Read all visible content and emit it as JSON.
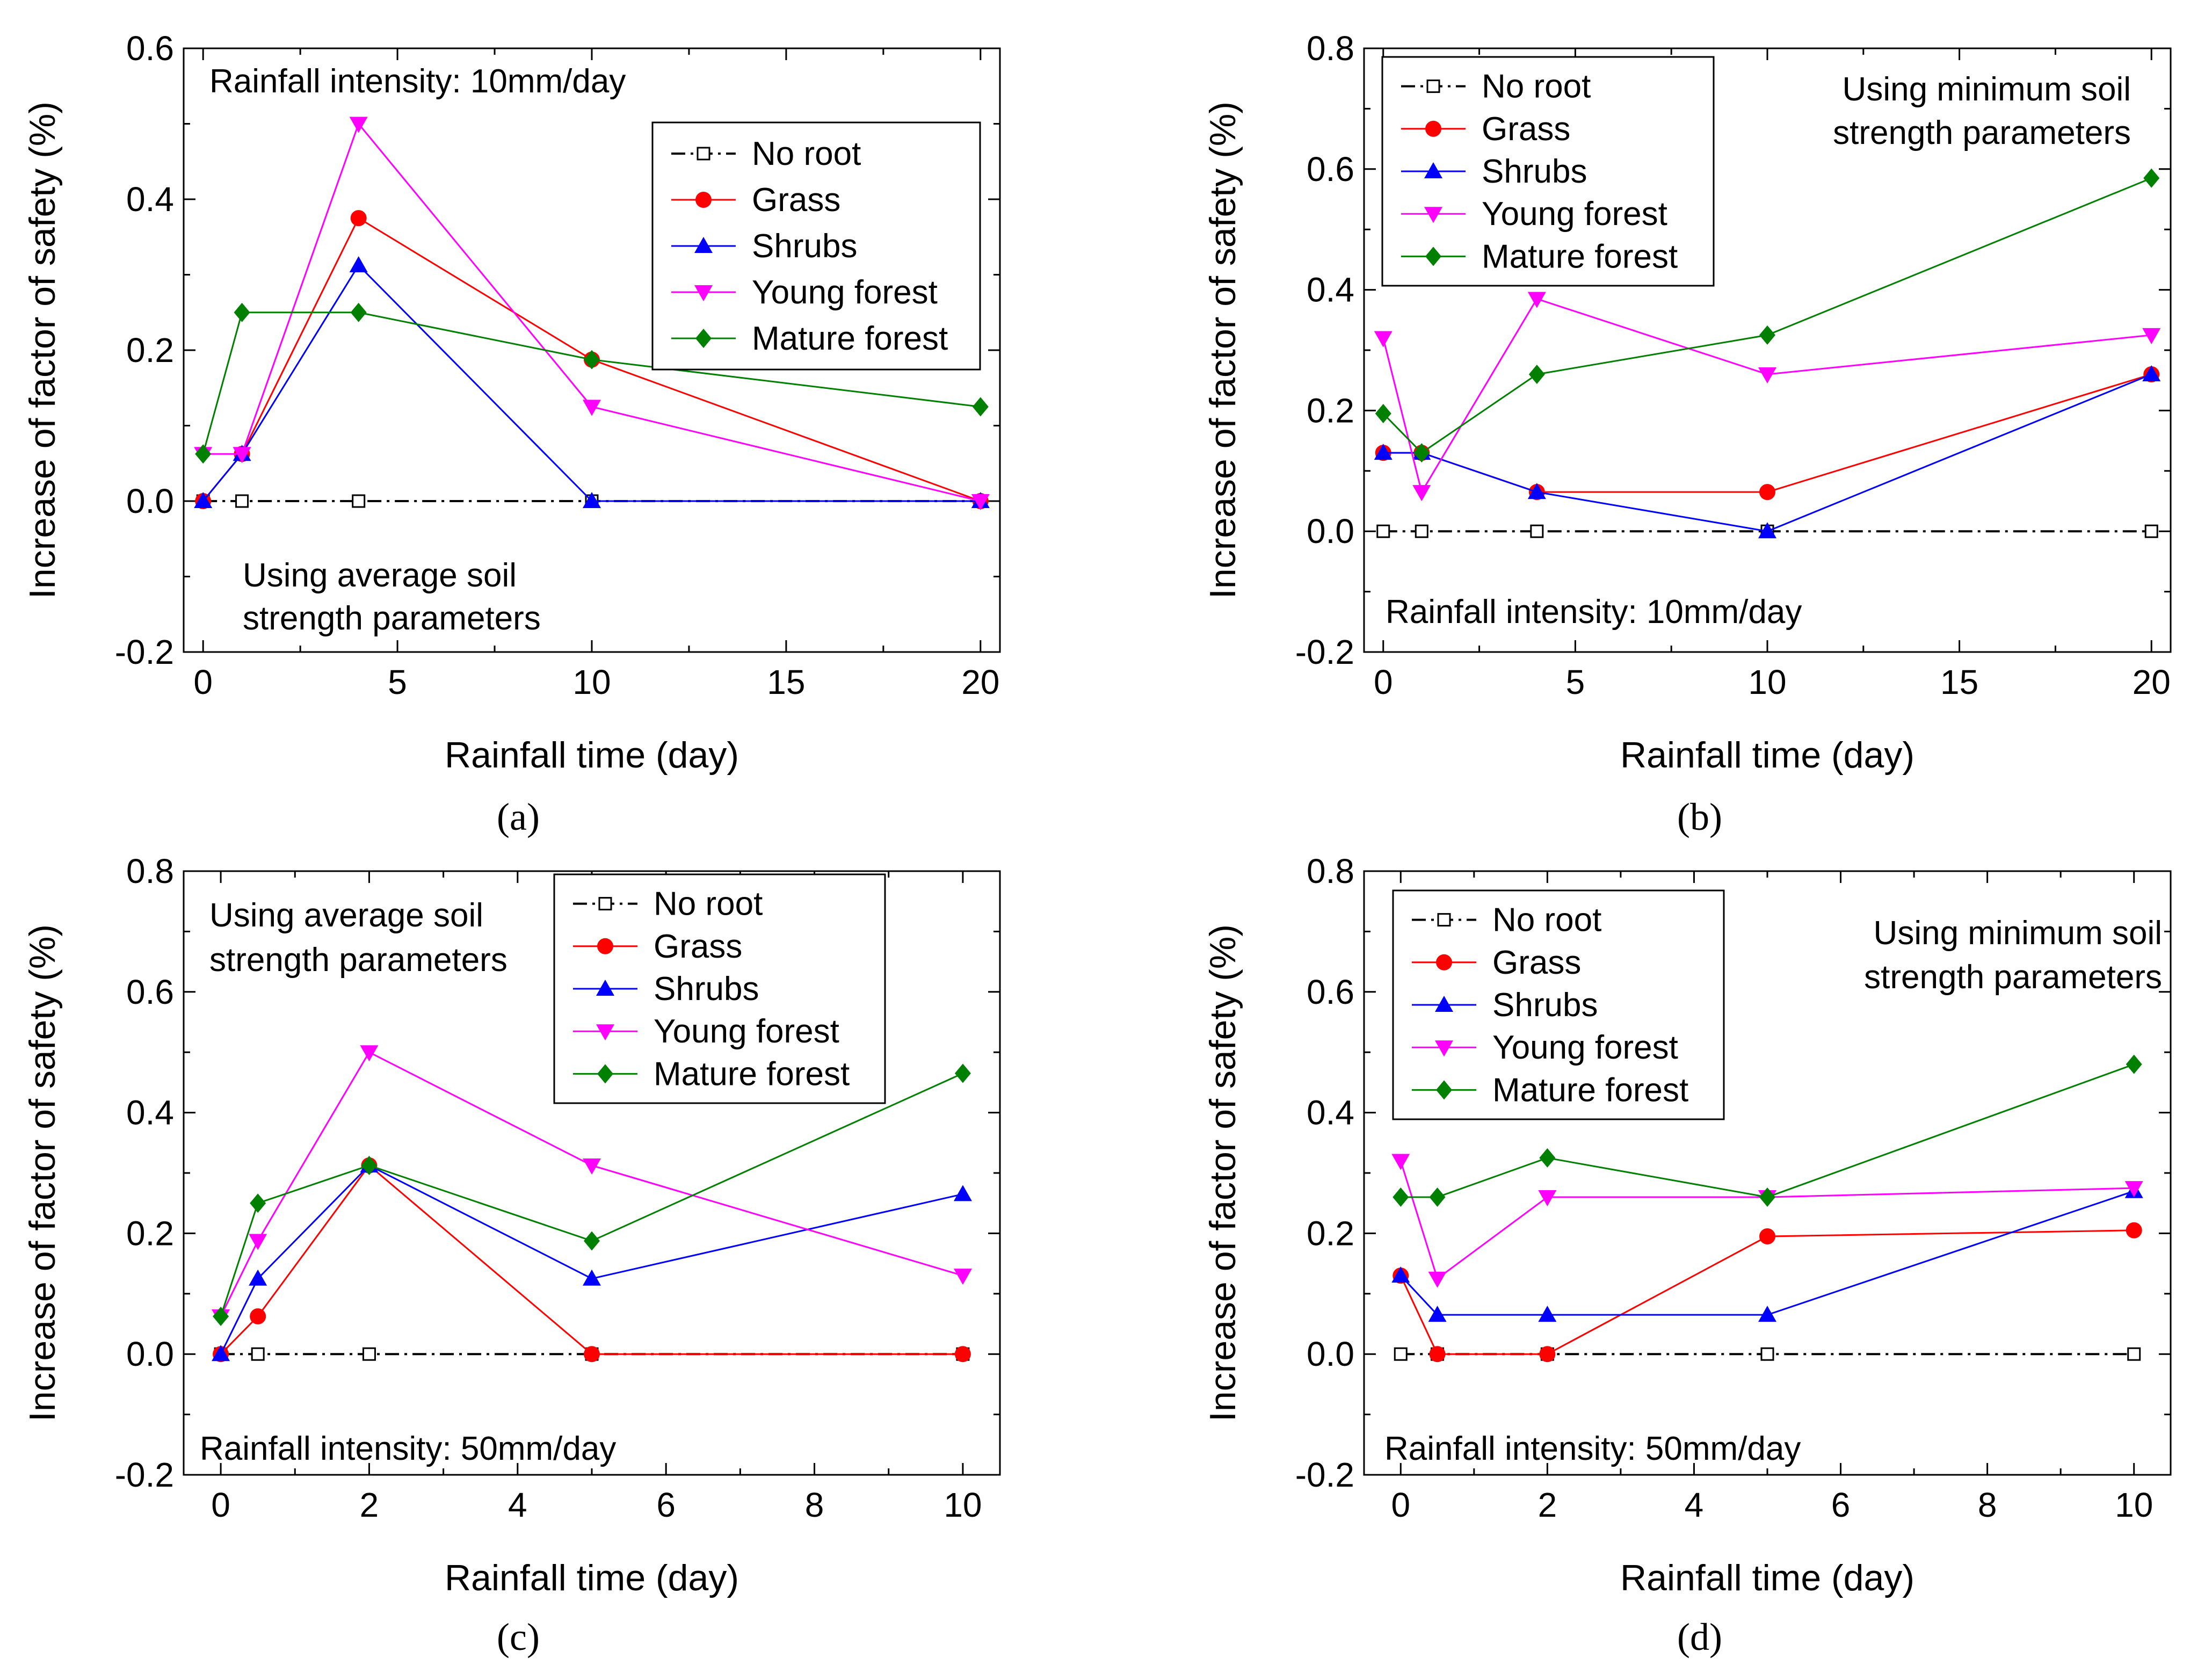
{
  "figure": {
    "colors": {
      "no_root": "#000000",
      "grass": "#ff0000",
      "shrubs": "#0000ff",
      "young_forest": "#ff00ff",
      "mature_forest": "#008000"
    }
  },
  "chart_data": [
    {
      "type": "line",
      "panel": "a",
      "caption": "(a)",
      "xlabel": "Rainfall time (day)",
      "ylabel": "Increase of factor of safety (%)",
      "xlim": [
        -0.5,
        20.5
      ],
      "ylim": [
        -0.2,
        0.6
      ],
      "xticks": [
        0,
        5,
        10,
        15,
        20
      ],
      "yticks": [
        -0.2,
        0.0,
        0.2,
        0.4,
        0.6
      ],
      "x_minor": 2.5,
      "y_minor": 0.1,
      "annotations": [
        "Rainfall intensity: 10mm/day",
        "Using average soil",
        "strength parameters"
      ],
      "legend_position": "top-right",
      "x": [
        0,
        1,
        4,
        10,
        20
      ],
      "series": [
        {
          "key": "no_root",
          "name": "No root",
          "values": [
            0,
            0,
            0,
            0,
            0
          ]
        },
        {
          "key": "grass",
          "name": "Grass",
          "values": [
            0,
            0.0625,
            0.375,
            0.1875,
            0
          ]
        },
        {
          "key": "shrubs",
          "name": "Shrubs",
          "values": [
            0,
            0.0625,
            0.3125,
            0,
            0
          ]
        },
        {
          "key": "young_forest",
          "name": "Young forest",
          "values": [
            0.0625,
            0.0625,
            0.5,
            0.125,
            0
          ]
        },
        {
          "key": "mature_forest",
          "name": "Mature forest",
          "values": [
            0.0625,
            0.25,
            0.25,
            0.1875,
            0.125
          ]
        }
      ]
    },
    {
      "type": "line",
      "panel": "b",
      "caption": "(b)",
      "xlabel": "Rainfall time (day)",
      "ylabel": "Increase of factor of safety (%)",
      "xlim": [
        -0.5,
        20.5
      ],
      "ylim": [
        -0.2,
        0.8
      ],
      "xticks": [
        0,
        5,
        10,
        15,
        20
      ],
      "yticks": [
        -0.2,
        0.0,
        0.2,
        0.4,
        0.6,
        0.8
      ],
      "x_minor": 2.5,
      "y_minor": 0.1,
      "annotations": [
        "Using minimum soil",
        "strength parameters",
        "Rainfall intensity: 10mm/day"
      ],
      "legend_position": "top-left",
      "x": [
        0,
        1,
        4,
        10,
        20
      ],
      "series": [
        {
          "key": "no_root",
          "name": "No root",
          "values": [
            0,
            0,
            0,
            0,
            0
          ]
        },
        {
          "key": "grass",
          "name": "Grass",
          "values": [
            0.13,
            0.13,
            0.065,
            0.065,
            0.26
          ]
        },
        {
          "key": "shrubs",
          "name": "Shrubs",
          "values": [
            0.13,
            0.13,
            0.065,
            0,
            0.26
          ]
        },
        {
          "key": "young_forest",
          "name": "Young forest",
          "values": [
            0.32,
            0.065,
            0.385,
            0.26,
            0.325
          ]
        },
        {
          "key": "mature_forest",
          "name": "Mature forest",
          "values": [
            0.195,
            0.13,
            0.26,
            0.325,
            0.585
          ]
        }
      ]
    },
    {
      "type": "line",
      "panel": "c",
      "caption": "(c)",
      "xlabel": "Rainfall time (day)",
      "ylabel": "Increase of factor of safety (%)",
      "xlim": [
        -0.5,
        10.5
      ],
      "ylim": [
        -0.2,
        0.8
      ],
      "xticks": [
        0,
        2,
        4,
        6,
        8,
        10
      ],
      "yticks": [
        -0.2,
        0.0,
        0.2,
        0.4,
        0.6,
        0.8
      ],
      "x_minor": 1,
      "y_minor": 0.1,
      "annotations": [
        "Using average soil",
        "strength parameters",
        "Rainfall intensity: 50mm/day"
      ],
      "legend_position": "top-right",
      "x": [
        0,
        0.5,
        2,
        5,
        10
      ],
      "series": [
        {
          "key": "no_root",
          "name": "No root",
          "values": [
            0,
            0,
            0,
            0,
            0
          ]
        },
        {
          "key": "grass",
          "name": "Grass",
          "values": [
            0,
            0.0625,
            0.3125,
            0,
            0
          ]
        },
        {
          "key": "shrubs",
          "name": "Shrubs",
          "values": [
            0,
            0.125,
            0.3125,
            0.125,
            0.265
          ]
        },
        {
          "key": "young_forest",
          "name": "Young forest",
          "values": [
            0.0625,
            0.1875,
            0.5,
            0.3125,
            0.13
          ]
        },
        {
          "key": "mature_forest",
          "name": "Mature forest",
          "values": [
            0.0625,
            0.25,
            0.3125,
            0.1875,
            0.465
          ]
        }
      ]
    },
    {
      "type": "line",
      "panel": "d",
      "caption": "(d)",
      "xlabel": "Rainfall time (day)",
      "ylabel": "Increase of factor of safety (%)",
      "xlim": [
        -0.5,
        10.5
      ],
      "ylim": [
        -0.2,
        0.8
      ],
      "xticks": [
        0,
        2,
        4,
        6,
        8,
        10
      ],
      "yticks": [
        -0.2,
        0.0,
        0.2,
        0.4,
        0.6,
        0.8
      ],
      "x_minor": 1,
      "y_minor": 0.1,
      "annotations": [
        "Using minimum soil",
        "strength parameters",
        "Rainfall intensity: 50mm/day"
      ],
      "legend_position": "top-left",
      "x": [
        0,
        0.5,
        2,
        5,
        10
      ],
      "series": [
        {
          "key": "no_root",
          "name": "No root",
          "values": [
            0,
            0,
            0,
            0,
            0
          ]
        },
        {
          "key": "grass",
          "name": "Grass",
          "values": [
            0.13,
            0,
            0,
            0.195,
            0.205
          ]
        },
        {
          "key": "shrubs",
          "name": "Shrubs",
          "values": [
            0.13,
            0.065,
            0.065,
            0.065,
            0.27
          ]
        },
        {
          "key": "young_forest",
          "name": "Young forest",
          "values": [
            0.32,
            0.125,
            0.26,
            0.26,
            0.275
          ]
        },
        {
          "key": "mature_forest",
          "name": "Mature forest",
          "values": [
            0.26,
            0.26,
            0.325,
            0.26,
            0.48
          ]
        }
      ]
    }
  ]
}
